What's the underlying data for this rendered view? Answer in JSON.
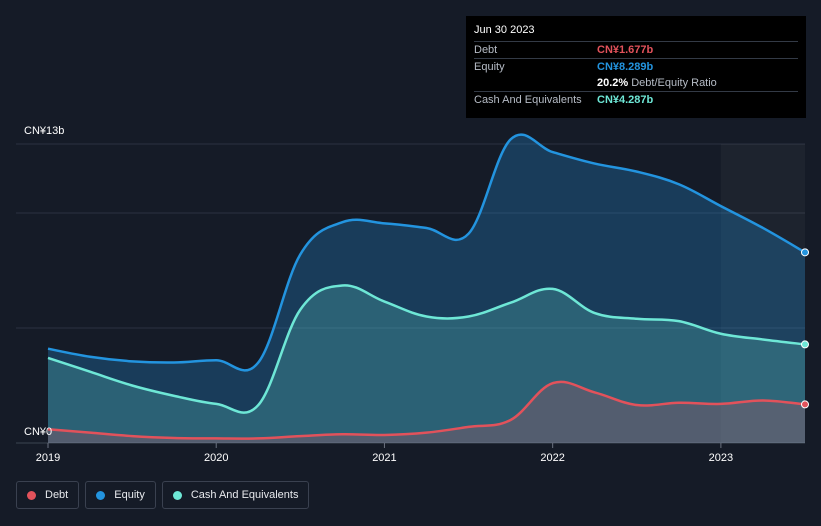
{
  "tooltip": {
    "date": "Jun 30 2023",
    "rows": [
      {
        "label": "Debt",
        "value": "CN¥1.677b",
        "color": "#e2525b"
      },
      {
        "label": "Equity",
        "value": "CN¥8.289b",
        "color": "#2394df"
      },
      {
        "label": "",
        "value": "20.2%",
        "suffix": "Debt/Equity Ratio",
        "color": "#ffffff"
      },
      {
        "label": "Cash And Equivalents",
        "value": "CN¥4.287b",
        "color": "#6ee7d6"
      }
    ]
  },
  "legend": [
    {
      "label": "Debt",
      "color": "#e2525b"
    },
    {
      "label": "Equity",
      "color": "#2394df"
    },
    {
      "label": "Cash And Equivalents",
      "color": "#6ee7d6"
    }
  ],
  "chart_data": {
    "type": "area",
    "title": "",
    "xlabel": "",
    "ylabel": "",
    "y_tick_labels": [
      "CN¥0",
      "CN¥13b"
    ],
    "ylim": [
      0,
      13
    ],
    "xlim": [
      2019.0,
      2023.5
    ],
    "x_ticks": [
      2019,
      2020,
      2021,
      2022,
      2023
    ],
    "x_tick_labels": [
      "2019",
      "2020",
      "2021",
      "2022",
      "2023"
    ],
    "gridlines": [
      0,
      5,
      10,
      13
    ],
    "grid": true,
    "highlight_from": 2023.0,
    "series": [
      {
        "name": "Equity",
        "color": "#2394df",
        "points": [
          [
            2019.0,
            4.1
          ],
          [
            2019.25,
            3.75
          ],
          [
            2019.5,
            3.55
          ],
          [
            2019.75,
            3.5
          ],
          [
            2020.0,
            3.6
          ],
          [
            2020.25,
            3.5
          ],
          [
            2020.5,
            8.2
          ],
          [
            2020.75,
            9.6
          ],
          [
            2021.0,
            9.55
          ],
          [
            2021.25,
            9.35
          ],
          [
            2021.5,
            9.1
          ],
          [
            2021.75,
            13.2
          ],
          [
            2022.0,
            12.65
          ],
          [
            2022.25,
            12.15
          ],
          [
            2022.5,
            11.8
          ],
          [
            2022.75,
            11.25
          ],
          [
            2023.0,
            10.3
          ],
          [
            2023.25,
            9.35
          ],
          [
            2023.5,
            8.289
          ]
        ]
      },
      {
        "name": "Cash And Equivalents",
        "color": "#6ee7d6",
        "points": [
          [
            2019.0,
            3.7
          ],
          [
            2019.25,
            3.1
          ],
          [
            2019.5,
            2.5
          ],
          [
            2019.75,
            2.05
          ],
          [
            2020.0,
            1.7
          ],
          [
            2020.25,
            1.65
          ],
          [
            2020.5,
            5.8
          ],
          [
            2020.75,
            6.85
          ],
          [
            2021.0,
            6.15
          ],
          [
            2021.25,
            5.5
          ],
          [
            2021.5,
            5.5
          ],
          [
            2021.75,
            6.1
          ],
          [
            2022.0,
            6.7
          ],
          [
            2022.25,
            5.65
          ],
          [
            2022.5,
            5.4
          ],
          [
            2022.75,
            5.3
          ],
          [
            2023.0,
            4.75
          ],
          [
            2023.25,
            4.5
          ],
          [
            2023.5,
            4.287
          ]
        ]
      },
      {
        "name": "Debt",
        "color": "#e2525b",
        "points": [
          [
            2019.0,
            0.6
          ],
          [
            2019.25,
            0.45
          ],
          [
            2019.5,
            0.3
          ],
          [
            2019.75,
            0.22
          ],
          [
            2020.0,
            0.2
          ],
          [
            2020.25,
            0.2
          ],
          [
            2020.5,
            0.3
          ],
          [
            2020.75,
            0.38
          ],
          [
            2021.0,
            0.35
          ],
          [
            2021.25,
            0.45
          ],
          [
            2021.5,
            0.7
          ],
          [
            2021.75,
            1.0
          ],
          [
            2022.0,
            2.6
          ],
          [
            2022.25,
            2.2
          ],
          [
            2022.5,
            1.65
          ],
          [
            2022.75,
            1.75
          ],
          [
            2023.0,
            1.7
          ],
          [
            2023.25,
            1.85
          ],
          [
            2023.5,
            1.677
          ]
        ]
      }
    ]
  }
}
